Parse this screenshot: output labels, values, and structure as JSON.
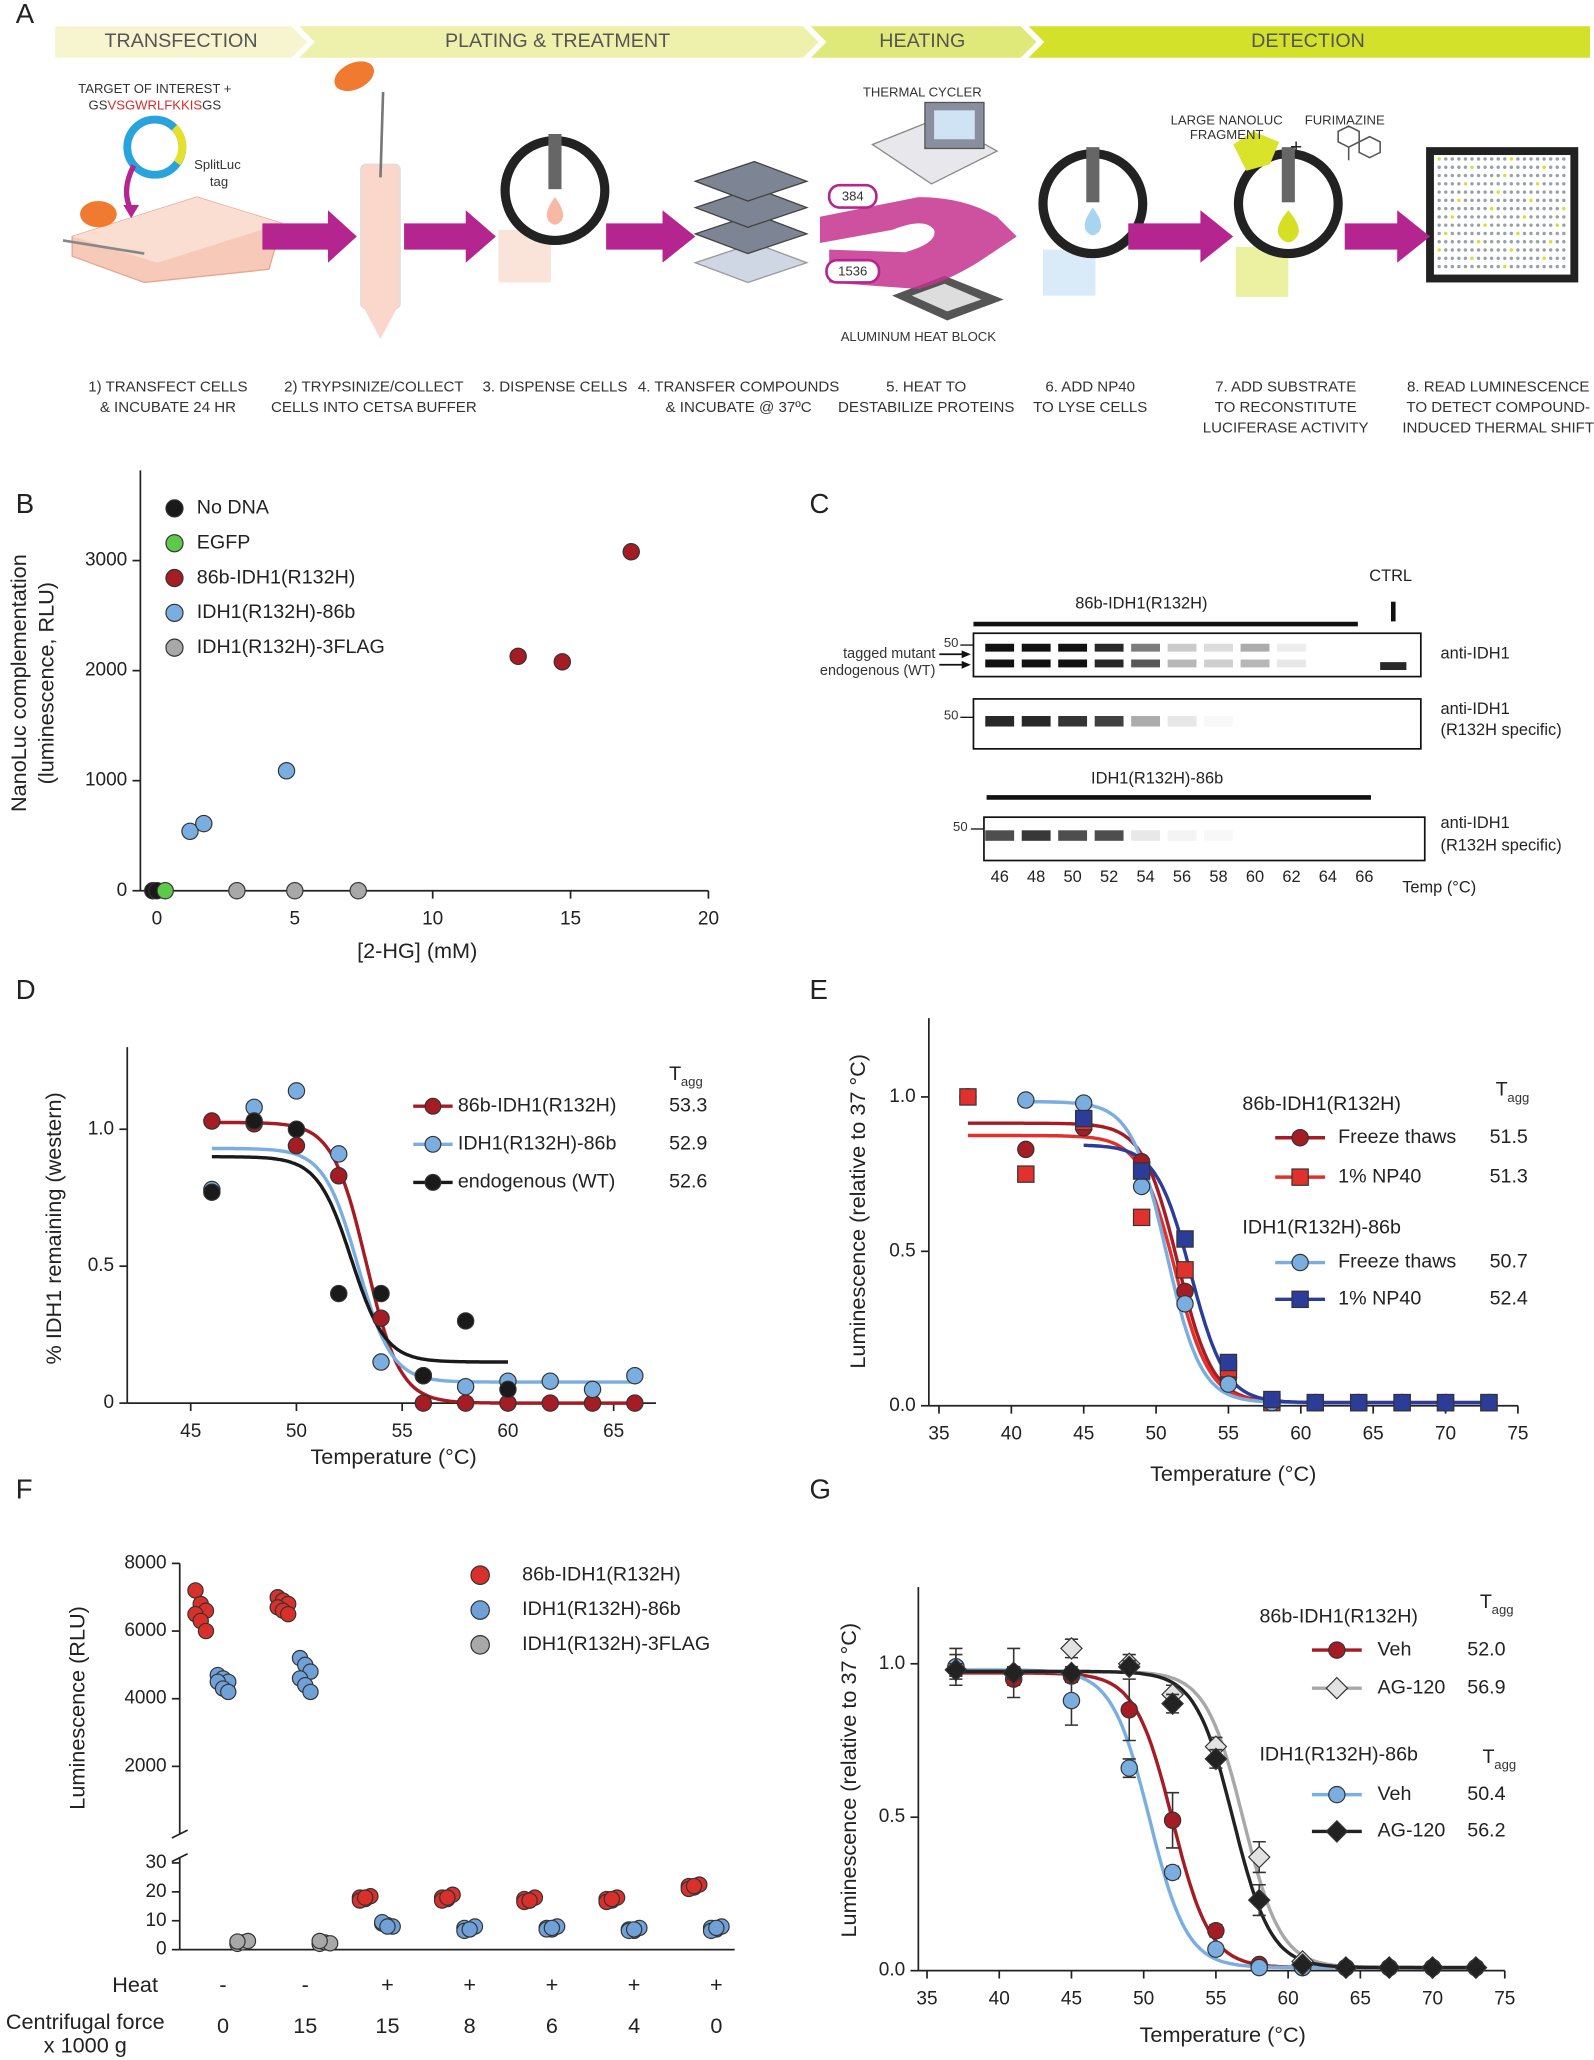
{
  "panel_labels": [
    "A",
    "B",
    "C",
    "D",
    "E",
    "F",
    "G"
  ],
  "workflow": {
    "stages": [
      "TRANSFECTION",
      "PLATING & TREATMENT",
      "HEATING",
      "DETECTION"
    ],
    "steps": [
      [
        "1) TRANSFECT CELLS",
        "& INCUBATE 24 HR"
      ],
      [
        "2) TRYPSINIZE/COLLECT",
        "CELLS INTO CETSA BUFFER"
      ],
      [
        "3. DISPENSE CELLS"
      ],
      [
        "4. TRANSFER COMPOUNDS",
        "& INCUBATE @ 37ºC"
      ],
      [
        "5. HEAT TO",
        "DESTABILIZE PROTEINS"
      ],
      [
        "6. ADD NP40",
        "TO LYSE CELLS"
      ],
      [
        "7. ADD SUBSTRATE",
        "TO RECONSTITUTE",
        "LUCIFERASE ACTIVITY"
      ],
      [
        "8. READ LUMINESCENCE",
        "TO DETECT COMPOUND-",
        "INDUCED THERMAL SHIFT"
      ]
    ],
    "construct_title": "TARGET OF INTEREST +",
    "construct_seq": [
      "GS",
      "VSGWRLFKKIS",
      "GS"
    ],
    "tag_label": [
      "SplitLuc",
      "tag"
    ],
    "thermal_cycler": "THERMAL CYCLER",
    "plate_formats": [
      "384",
      "1536"
    ],
    "heat_block": "ALUMINUM HEAT BLOCK",
    "fragment": [
      "LARGE NANOLUC",
      "FRAGMENT"
    ],
    "plus": "+",
    "substrate": "FURIMAZINE"
  },
  "blot": {
    "top_construct": "86b-IDH1(R132H)",
    "ctrl": "CTRL",
    "arrows": [
      "tagged mutant",
      "endogenous (WT)"
    ],
    "markers": [
      "50",
      "50",
      "50"
    ],
    "rows": [
      [
        "anti-IDH1"
      ],
      [
        "anti-IDH1",
        "(R132H specific)"
      ],
      [
        "anti-IDH1",
        "(R132H specific)"
      ]
    ],
    "bottom_construct": "IDH1(R132H)-86b",
    "temps": [
      46,
      48,
      50,
      52,
      54,
      56,
      58,
      60,
      62,
      64,
      66
    ],
    "temp_label": "Temp (°C)"
  },
  "chart_data": [
    {
      "type": "scatter",
      "xlabel": "[2-HG] (mM)",
      "ylabel": [
        "NanoLuc complementation",
        "(luminescence, RLU)"
      ],
      "xlim": [
        -0.6,
        20
      ],
      "ylim": [
        0,
        3820
      ],
      "xticks": [
        0,
        5,
        10,
        15,
        20
      ],
      "yticks": [
        0,
        1000,
        2000,
        3000
      ],
      "series": [
        {
          "name": "No DNA",
          "color": "#1a1a1a",
          "x": [
            -0.15,
            0
          ],
          "values": [
            0,
            0
          ]
        },
        {
          "name": "EGFP",
          "color": "#5cc94a",
          "x": [
            0.3
          ],
          "values": [
            0
          ]
        },
        {
          "name": "86b-IDH1(R132H)",
          "color": "#a51c24",
          "x": [
            13.1,
            14.7,
            17.2
          ],
          "values": [
            2130,
            2080,
            3080
          ]
        },
        {
          "name": "IDH1(R132H)-86b",
          "color": "#7aaee0",
          "x": [
            1.2,
            1.7,
            4.7
          ],
          "values": [
            540,
            610,
            1090
          ]
        },
        {
          "name": "IDH1(R132H)-3FLAG",
          "color": "#a8a8a8",
          "x": [
            2.9,
            5,
            7.3
          ],
          "values": [
            0,
            0,
            0
          ]
        }
      ]
    },
    {
      "type": "scatter",
      "fit": "sigmoid",
      "xlabel": "Temperature (°C)",
      "ylabel": [
        "% IDH1 remaining (western)"
      ],
      "xlim": [
        42,
        67
      ],
      "ylim": [
        0,
        1.3
      ],
      "xticks": [
        45,
        50,
        55,
        60,
        65
      ],
      "yticks": [
        0,
        0.5,
        {
          "value": 1,
          "label": "1.0"
        }
      ],
      "tagg_header": {
        "main": "T",
        "sub": "agg"
      },
      "x": [
        46,
        48,
        50,
        52,
        54,
        56,
        58,
        60,
        62,
        64,
        66
      ],
      "series": [
        {
          "name": "86b-IDH1(R132H)",
          "color": "#a51c24",
          "tagg": 53.3,
          "values": [
            1.03,
            1.02,
            0.94,
            0.83,
            0.31,
            0,
            0,
            0,
            0,
            0,
            0
          ]
        },
        {
          "name": "IDH1(R132H)-86b",
          "color": "#7aaee0",
          "tagg": 52.9,
          "values": [
            0.78,
            1.08,
            1.14,
            0.91,
            0.15,
            0.1,
            0.06,
            0.08,
            0.08,
            0.05,
            0.1
          ]
        },
        {
          "name": "endogenous (WT)",
          "color": "#1a1a1a",
          "tagg": 52.6,
          "values": [
            0.77,
            1.03,
            1.0,
            0.4,
            0.4,
            0.1,
            0.3,
            0.05,
            null,
            null,
            null
          ]
        }
      ]
    },
    {
      "type": "scatter",
      "fit": "sigmoid",
      "xlabel": "Temperature (°C)",
      "ylabel": [
        "Luminescence (relative to 37 °C)"
      ],
      "xlim": [
        34.3,
        75
      ],
      "ylim": [
        0,
        1.255
      ],
      "xticks": [
        35,
        40,
        45,
        50,
        55,
        60,
        65,
        70,
        75
      ],
      "yticks": [
        {
          "value": 0,
          "label": "0.0"
        },
        0.5,
        {
          "value": 1,
          "label": "1.0"
        }
      ],
      "x": [
        37,
        41,
        45,
        49,
        52,
        55,
        58,
        61,
        64,
        67,
        70,
        73
      ],
      "groups": [
        {
          "title": "86b-IDH1(R132H)",
          "tagg_header": {
            "main": "T",
            "sub": "agg"
          },
          "series": [
            {
              "name": "Freeze thaws",
              "color": "#a51c24",
              "marker": "circle",
              "tagg": 51.5,
              "values": [
                1.0,
                0.83,
                0.9,
                0.79,
                0.37,
                0.09,
                0.01,
                0.01,
                0.01,
                0.01,
                0.01,
                0.01
              ]
            },
            {
              "name": "1% NP40",
              "color": "#e0312c",
              "marker": "square",
              "tagg": 51.3,
              "values": [
                1.0,
                0.75,
                0.92,
                0.61,
                0.44,
                0.12,
                0.01,
                0.01,
                0.01,
                0.01,
                0.01,
                0.01
              ]
            }
          ]
        },
        {
          "title": "IDH1(R132H)-86b",
          "series": [
            {
              "name": "Freeze thaws",
              "color": "#7aaee0",
              "marker": "circle",
              "tagg": 50.7,
              "values": [
                null,
                0.99,
                0.98,
                0.71,
                0.33,
                0.07,
                0.01,
                0.01,
                0.01,
                0.01,
                0.01,
                0.01
              ]
            },
            {
              "name": "1% NP40",
              "color": "#2b3d99",
              "marker": "square",
              "tagg": 52.4,
              "values": [
                null,
                null,
                0.93,
                0.76,
                0.54,
                0.14,
                0.02,
                0.01,
                0.01,
                0.01,
                0.01,
                0.01
              ]
            }
          ]
        }
      ]
    },
    {
      "type": "strip",
      "ylabel": "Luminescence (RLU)",
      "ylim": [
        0,
        30
      ],
      "yticks": [
        0,
        10,
        20,
        30
      ],
      "break_ylim": [
        0,
        8000
      ],
      "break_yticks": [
        2000,
        4000,
        6000,
        8000
      ],
      "heat_label": "Heat",
      "force_label": [
        "Centrifugal force",
        "x 1000 g"
      ],
      "heat": [
        "-",
        "-",
        "+",
        "+",
        "+",
        "+",
        "+"
      ],
      "categories": [
        0,
        15,
        15,
        8,
        6,
        4,
        0
      ],
      "series": [
        {
          "name": "86b-IDH1(R132H)",
          "color": "#d9302c",
          "values": [
            [
              7200,
              6800,
              6600,
              6500,
              6300,
              6000
            ],
            [
              7000,
              6900,
              6800,
              6700,
              6600,
              6500
            ],
            [
              18,
              17.5,
              18.5,
              17,
              18
            ],
            [
              18,
              17.5,
              19,
              17,
              18
            ],
            [
              17.5,
              17,
              18,
              16.5,
              17
            ],
            [
              17.5,
              17,
              18,
              16.5,
              17.5
            ],
            [
              22,
              21.5,
              22.5,
              21,
              22
            ]
          ]
        },
        {
          "name": "IDH1(R132H)-86b",
          "color": "#6fa0d8",
          "values": [
            [
              4700,
              4600,
              4500,
              4500,
              4300,
              4200
            ],
            [
              5200,
              5000,
              4800,
              4600,
              4400,
              4200
            ],
            [
              9,
              8.5,
              8,
              9.5,
              8
            ],
            [
              7.5,
              7,
              8,
              6.5,
              7
            ],
            [
              7.5,
              7,
              8,
              7,
              7.5
            ],
            [
              7,
              6.5,
              7.5,
              6.5,
              7
            ],
            [
              7.5,
              7,
              8,
              6.5,
              7.5
            ]
          ]
        },
        {
          "name": "IDH1(R132H)-3FLAG",
          "color": "#a8a8a8",
          "values": [
            [
              2,
              2.5,
              3,
              2.8
            ],
            [
              2,
              2.5,
              2.2,
              3
            ],
            null,
            null,
            null,
            null,
            null
          ]
        }
      ]
    },
    {
      "type": "scatter",
      "fit": "sigmoid",
      "xlabel": "Temperature (°C)",
      "ylabel": [
        "Luminescence (relative to 37 °C)"
      ],
      "xlim": [
        34.4,
        75
      ],
      "ylim": [
        0,
        1.25
      ],
      "xticks": [
        35,
        40,
        45,
        50,
        55,
        60,
        65,
        70,
        75
      ],
      "yticks": [
        {
          "value": 0,
          "label": "0.0"
        },
        0.5,
        {
          "value": 1,
          "label": "1.0"
        }
      ],
      "x": [
        37,
        41,
        45,
        49,
        52,
        55,
        58,
        61,
        64,
        67,
        70,
        73
      ],
      "groups": [
        {
          "title": "86b-IDH1(R132H)",
          "tagg_header": {
            "main": "T",
            "sub": "agg"
          },
          "series": [
            {
              "name": "Veh",
              "color": "#a51c24",
              "marker": "circle",
              "tagg": 52,
              "tagg_label": "52.0",
              "values": [
                0.99,
                0.95,
                0.96,
                0.85,
                0.49,
                0.13,
                0.02,
                0.01,
                0.01,
                0.01,
                0.01,
                0.01
              ],
              "errors": [
                0.06,
                0.02,
                0.02,
                0.1,
                0.09,
                0.02,
                0.01,
                0.01,
                0.01,
                0.01,
                0.01,
                0.01
              ]
            },
            {
              "name": "AG-120",
              "color": "#a8a8a8",
              "fill": "#e2e2e2",
              "marker": "diamond",
              "tagg": 56.9,
              "values": [
                0.98,
                0.97,
                1.05,
                1.0,
                0.9,
                0.73,
                0.37,
                0.03,
                0.01,
                0.01,
                0.01,
                0.01
              ],
              "errors": [
                0.02,
                0.02,
                0.03,
                0.03,
                0.03,
                0.03,
                0.05,
                0.01,
                0.01,
                0.01,
                0.01,
                0.01
              ]
            }
          ]
        },
        {
          "title": "IDH1(R132H)-86b",
          "tagg_header": {
            "main": "T",
            "sub": "agg"
          },
          "series": [
            {
              "name": "Veh",
              "color": "#7aaee0",
              "marker": "circle",
              "tagg": 50.4,
              "values": [
                0.99,
                0.97,
                0.88,
                0.66,
                0.32,
                0.07,
                0.01,
                0.01,
                0.01,
                0.01,
                0.01,
                0.01
              ],
              "errors": [
                0.04,
                0.08,
                0.08,
                0.03,
                0.02,
                0.01,
                0.01,
                0.01,
                0.01,
                0.01,
                0.01,
                0.01
              ]
            },
            {
              "name": "AG-120",
              "color": "#222222",
              "marker": "diamond",
              "tagg": 56.2,
              "values": [
                0.98,
                0.97,
                0.97,
                0.99,
                0.87,
                0.69,
                0.23,
                0.02,
                0.01,
                0.01,
                0.01,
                0.01
              ],
              "errors": [
                0.02,
                0.02,
                0.02,
                0.02,
                0.03,
                0.03,
                0.05,
                0.01,
                0.01,
                0.01,
                0.01,
                0.01
              ]
            }
          ]
        }
      ]
    }
  ]
}
